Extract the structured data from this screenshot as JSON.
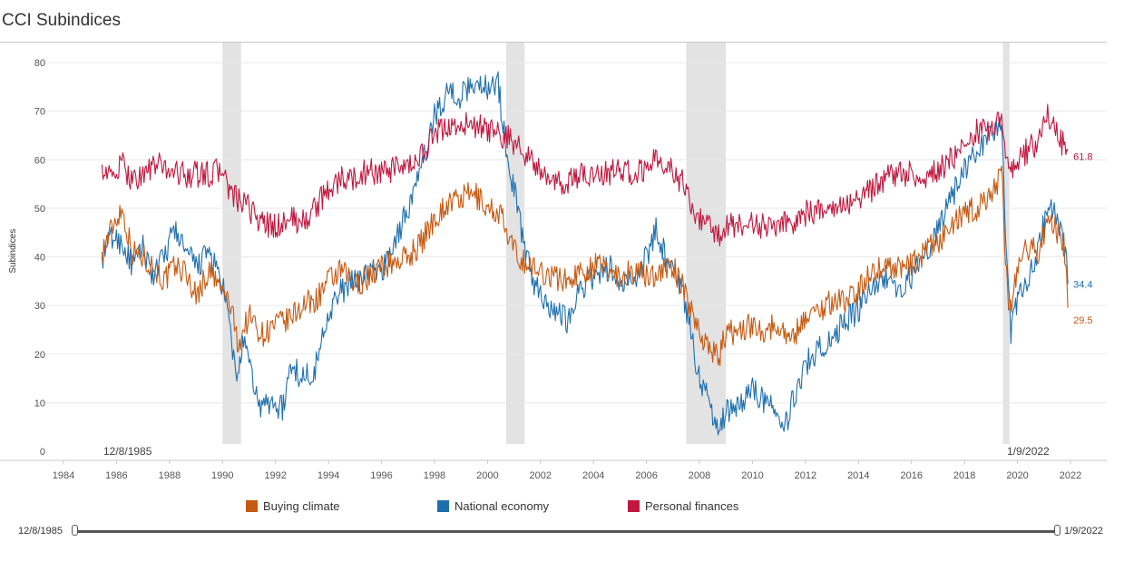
{
  "title": "CCI Subindices",
  "colors": {
    "buying": "#c65a11",
    "national": "#1f6fad",
    "personal": "#c0183f",
    "recession": "#e3e3e3",
    "grid": "#e8e8e8"
  },
  "chart_data": {
    "type": "line",
    "title": "CCI Subindices",
    "xlabel": "",
    "ylabel": "Subindices",
    "xlim": [
      1984,
      2022.5
    ],
    "ylim": [
      0,
      80
    ],
    "x_ticks": [
      1984,
      1986,
      1988,
      1990,
      1992,
      1994,
      1996,
      1998,
      2000,
      2002,
      2004,
      2006,
      2008,
      2010,
      2012,
      2014,
      2016,
      2018,
      2020,
      2022
    ],
    "y_ticks": [
      0,
      10,
      20,
      30,
      40,
      50,
      60,
      70,
      80
    ],
    "recessions": [
      [
        1990.0,
        1990.7
      ],
      [
        2000.7,
        2001.4
      ],
      [
        2007.5,
        2009.0
      ],
      [
        2019.45,
        2019.7
      ]
    ],
    "start_label": "12/8/1985",
    "end_label": "1/9/2022",
    "series": [
      {
        "name": "Buying climate",
        "color_key": "buying",
        "end_label": "29.5",
        "points": [
          [
            1985.45,
            41
          ],
          [
            1985.9,
            47
          ],
          [
            1986.2,
            50
          ],
          [
            1986.6,
            41
          ],
          [
            1987.0,
            40
          ],
          [
            1987.4,
            38
          ],
          [
            1987.8,
            35
          ],
          [
            1988.2,
            38
          ],
          [
            1988.6,
            37
          ],
          [
            1989.0,
            32
          ],
          [
            1989.5,
            37
          ],
          [
            1990.0,
            33
          ],
          [
            1990.3,
            30
          ],
          [
            1990.6,
            22
          ],
          [
            1991.0,
            28
          ],
          [
            1991.5,
            24
          ],
          [
            1992.0,
            26
          ],
          [
            1992.5,
            27
          ],
          [
            1993.0,
            30
          ],
          [
            1993.5,
            31
          ],
          [
            1994.0,
            35
          ],
          [
            1994.5,
            37
          ],
          [
            1995.0,
            34
          ],
          [
            1995.5,
            36
          ],
          [
            1996.0,
            38
          ],
          [
            1996.5,
            39
          ],
          [
            1997.0,
            40
          ],
          [
            1997.5,
            43
          ],
          [
            1998.0,
            48
          ],
          [
            1998.5,
            51
          ],
          [
            1999.0,
            52
          ],
          [
            1999.5,
            53
          ],
          [
            2000.0,
            50
          ],
          [
            2000.5,
            49
          ],
          [
            2000.8,
            43
          ],
          [
            2001.2,
            40
          ],
          [
            2001.6,
            38
          ],
          [
            2002.0,
            37
          ],
          [
            2002.5,
            36
          ],
          [
            2003.0,
            35
          ],
          [
            2003.5,
            37
          ],
          [
            2004.0,
            38
          ],
          [
            2004.5,
            38
          ],
          [
            2005.0,
            36
          ],
          [
            2005.5,
            37
          ],
          [
            2006.0,
            36
          ],
          [
            2006.5,
            37
          ],
          [
            2007.0,
            38
          ],
          [
            2007.5,
            32
          ],
          [
            2007.9,
            26
          ],
          [
            2008.3,
            22
          ],
          [
            2008.7,
            19
          ],
          [
            2009.0,
            24
          ],
          [
            2009.5,
            25
          ],
          [
            2010.0,
            26
          ],
          [
            2010.5,
            25
          ],
          [
            2011.0,
            26
          ],
          [
            2011.5,
            23
          ],
          [
            2012.0,
            28
          ],
          [
            2012.5,
            29
          ],
          [
            2013.0,
            31
          ],
          [
            2013.5,
            31
          ],
          [
            2014.0,
            33
          ],
          [
            2014.5,
            37
          ],
          [
            2015.0,
            38
          ],
          [
            2015.5,
            38
          ],
          [
            2016.0,
            38
          ],
          [
            2016.5,
            41
          ],
          [
            2017.0,
            43
          ],
          [
            2017.5,
            46
          ],
          [
            2018.0,
            49
          ],
          [
            2018.5,
            50
          ],
          [
            2019.0,
            53
          ],
          [
            2019.4,
            57
          ],
          [
            2019.55,
            40
          ],
          [
            2019.7,
            29
          ],
          [
            2019.9,
            34
          ],
          [
            2020.3,
            42
          ],
          [
            2020.8,
            41
          ],
          [
            2021.2,
            49
          ],
          [
            2021.5,
            45
          ],
          [
            2021.75,
            43
          ],
          [
            2021.85,
            35
          ],
          [
            2021.9,
            29.5
          ]
        ]
      },
      {
        "name": "National economy",
        "color_key": "national",
        "end_label": "34.4",
        "points": [
          [
            1985.45,
            40
          ],
          [
            1985.8,
            44
          ],
          [
            1986.2,
            43
          ],
          [
            1986.6,
            38
          ],
          [
            1987.0,
            42
          ],
          [
            1987.4,
            36
          ],
          [
            1987.8,
            40
          ],
          [
            1988.2,
            46
          ],
          [
            1988.6,
            41
          ],
          [
            1989.0,
            38
          ],
          [
            1989.5,
            41
          ],
          [
            1990.0,
            34
          ],
          [
            1990.3,
            25
          ],
          [
            1990.5,
            15
          ],
          [
            1990.8,
            22
          ],
          [
            1991.0,
            18
          ],
          [
            1991.4,
            9
          ],
          [
            1991.8,
            10
          ],
          [
            1992.3,
            9
          ],
          [
            1992.6,
            18
          ],
          [
            1993.0,
            15
          ],
          [
            1993.5,
            17
          ],
          [
            1994.0,
            29
          ],
          [
            1994.5,
            33
          ],
          [
            1995.0,
            35
          ],
          [
            1995.5,
            37
          ],
          [
            1996.0,
            37
          ],
          [
            1996.5,
            43
          ],
          [
            1997.0,
            50
          ],
          [
            1997.5,
            58
          ],
          [
            1998.0,
            69
          ],
          [
            1998.5,
            74
          ],
          [
            1999.0,
            73
          ],
          [
            1999.5,
            76
          ],
          [
            2000.0,
            75
          ],
          [
            2000.4,
            76
          ],
          [
            2000.7,
            62
          ],
          [
            2001.0,
            54
          ],
          [
            2001.4,
            42
          ],
          [
            2001.8,
            34
          ],
          [
            2002.2,
            31
          ],
          [
            2002.6,
            29
          ],
          [
            2003.0,
            27
          ],
          [
            2003.4,
            33
          ],
          [
            2003.8,
            35
          ],
          [
            2004.2,
            36
          ],
          [
            2004.6,
            38
          ],
          [
            2005.0,
            34
          ],
          [
            2005.5,
            35
          ],
          [
            2006.0,
            40
          ],
          [
            2006.4,
            46
          ],
          [
            2006.8,
            38
          ],
          [
            2007.2,
            36
          ],
          [
            2007.6,
            27
          ],
          [
            2007.9,
            17
          ],
          [
            2008.3,
            11
          ],
          [
            2008.7,
            5
          ],
          [
            2009.0,
            8
          ],
          [
            2009.5,
            10
          ],
          [
            2010.0,
            13
          ],
          [
            2010.5,
            10
          ],
          [
            2011.0,
            8
          ],
          [
            2011.3,
            6
          ],
          [
            2011.6,
            12
          ],
          [
            2012.0,
            18
          ],
          [
            2012.5,
            21
          ],
          [
            2013.0,
            23
          ],
          [
            2013.5,
            27
          ],
          [
            2014.0,
            29
          ],
          [
            2014.5,
            34
          ],
          [
            2015.0,
            36
          ],
          [
            2015.5,
            33
          ],
          [
            2016.0,
            36
          ],
          [
            2016.5,
            40
          ],
          [
            2017.0,
            46
          ],
          [
            2017.5,
            52
          ],
          [
            2018.0,
            58
          ],
          [
            2018.5,
            62
          ],
          [
            2019.0,
            65
          ],
          [
            2019.4,
            69
          ],
          [
            2019.55,
            45
          ],
          [
            2019.75,
            24
          ],
          [
            2020.0,
            31
          ],
          [
            2020.4,
            36
          ],
          [
            2020.8,
            42
          ],
          [
            2021.2,
            52
          ],
          [
            2021.5,
            47
          ],
          [
            2021.7,
            44
          ],
          [
            2021.85,
            38
          ],
          [
            2021.9,
            34.4
          ]
        ]
      },
      {
        "name": "Personal finances",
        "color_key": "personal",
        "end_label": "61.8",
        "points": [
          [
            1985.45,
            59
          ],
          [
            1985.8,
            56
          ],
          [
            1986.2,
            59
          ],
          [
            1986.6,
            56
          ],
          [
            1987.0,
            57
          ],
          [
            1987.5,
            59
          ],
          [
            1988.0,
            58
          ],
          [
            1988.5,
            57
          ],
          [
            1989.0,
            57
          ],
          [
            1989.5,
            57
          ],
          [
            1990.0,
            58
          ],
          [
            1990.3,
            53
          ],
          [
            1990.7,
            51
          ],
          [
            1991.0,
            50
          ],
          [
            1991.5,
            47
          ],
          [
            1992.0,
            46
          ],
          [
            1992.5,
            48
          ],
          [
            1993.0,
            47
          ],
          [
            1993.5,
            50
          ],
          [
            1994.0,
            54
          ],
          [
            1994.5,
            56
          ],
          [
            1995.0,
            56
          ],
          [
            1995.5,
            58
          ],
          [
            1996.0,
            57
          ],
          [
            1996.5,
            58
          ],
          [
            1997.0,
            58
          ],
          [
            1997.5,
            61
          ],
          [
            1998.0,
            65
          ],
          [
            1998.5,
            67
          ],
          [
            1999.0,
            67
          ],
          [
            1999.5,
            67
          ],
          [
            2000.0,
            66
          ],
          [
            2000.5,
            65
          ],
          [
            2000.9,
            64
          ],
          [
            2001.3,
            62
          ],
          [
            2001.7,
            60
          ],
          [
            2002.0,
            57
          ],
          [
            2002.5,
            55
          ],
          [
            2003.0,
            55
          ],
          [
            2003.5,
            57
          ],
          [
            2004.0,
            57
          ],
          [
            2004.5,
            57
          ],
          [
            2005.0,
            58
          ],
          [
            2005.5,
            57
          ],
          [
            2006.0,
            58
          ],
          [
            2006.5,
            61
          ],
          [
            2007.0,
            57
          ],
          [
            2007.5,
            55
          ],
          [
            2007.8,
            49
          ],
          [
            2008.2,
            47
          ],
          [
            2008.6,
            44
          ],
          [
            2009.0,
            46
          ],
          [
            2009.5,
            47
          ],
          [
            2010.0,
            47
          ],
          [
            2010.5,
            46
          ],
          [
            2011.0,
            47
          ],
          [
            2011.5,
            47
          ],
          [
            2012.0,
            49
          ],
          [
            2012.5,
            49
          ],
          [
            2013.0,
            51
          ],
          [
            2013.5,
            51
          ],
          [
            2014.0,
            52
          ],
          [
            2014.5,
            54
          ],
          [
            2015.0,
            56
          ],
          [
            2015.5,
            57
          ],
          [
            2016.0,
            57
          ],
          [
            2016.5,
            56
          ],
          [
            2017.0,
            58
          ],
          [
            2017.5,
            60
          ],
          [
            2018.0,
            63
          ],
          [
            2018.5,
            66
          ],
          [
            2019.0,
            66
          ],
          [
            2019.4,
            70
          ],
          [
            2019.55,
            62
          ],
          [
            2019.75,
            57
          ],
          [
            2020.0,
            60
          ],
          [
            2020.4,
            62
          ],
          [
            2020.8,
            64
          ],
          [
            2021.1,
            69
          ],
          [
            2021.4,
            68
          ],
          [
            2021.6,
            64
          ],
          [
            2021.75,
            63
          ],
          [
            2021.9,
            61.8
          ]
        ]
      }
    ]
  }
}
